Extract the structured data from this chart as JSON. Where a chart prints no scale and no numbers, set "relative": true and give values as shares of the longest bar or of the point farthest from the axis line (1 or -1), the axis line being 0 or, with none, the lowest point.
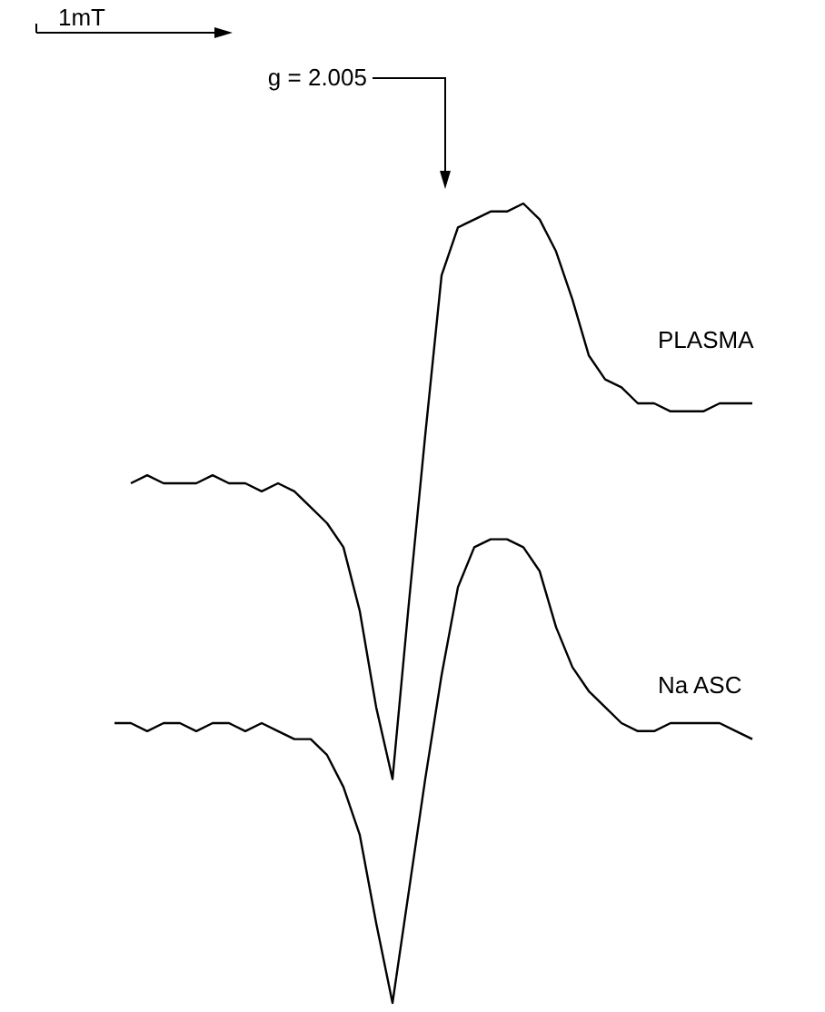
{
  "chart_data": {
    "type": "line",
    "relative": true,
    "categories": [
      null,
      null,
      null,
      null,
      null,
      null,
      null,
      null,
      null,
      null,
      null,
      null,
      null,
      null,
      null,
      null,
      null,
      null,
      null,
      null,
      null,
      null,
      null,
      null,
      null,
      null,
      null,
      null,
      null,
      null,
      null,
      null,
      null,
      null,
      null,
      null,
      null,
      null,
      null,
      null
    ],
    "series": [
      {
        "name": "PLASMA",
        "color": "#000000",
        "values": [
          null,
          0.65,
          0.66,
          0.65,
          0.65,
          0.65,
          0.66,
          0.65,
          0.65,
          0.64,
          0.65,
          0.64,
          0.62,
          0.6,
          0.57,
          0.49,
          0.37,
          0.28,
          0.5,
          0.71,
          0.91,
          0.97,
          0.98,
          0.99,
          0.99,
          1.0,
          0.98,
          0.94,
          0.88,
          0.81,
          0.78,
          0.77,
          0.75,
          0.75,
          0.74,
          0.74,
          0.74,
          0.75,
          0.75,
          0.75
        ]
      },
      {
        "name": "Na ASC",
        "color": "#000000",
        "values": [
          0.35,
          0.35,
          0.34,
          0.35,
          0.35,
          0.34,
          0.35,
          0.35,
          0.34,
          0.35,
          0.34,
          0.33,
          0.33,
          0.31,
          0.27,
          0.21,
          0.1,
          0,
          0.14,
          0.28,
          0.41,
          0.52,
          0.57,
          0.58,
          0.58,
          0.57,
          0.54,
          0.47,
          0.42,
          0.39,
          0.37,
          0.35,
          0.34,
          0.34,
          0.35,
          0.35,
          0.35,
          0.35,
          0.34,
          0.33
        ]
      }
    ],
    "annotations": [
      "1mT",
      "g = 2.005"
    ]
  }
}
